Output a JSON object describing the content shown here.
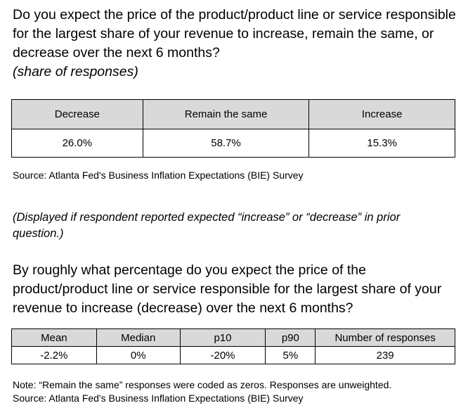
{
  "question1": {
    "text": "Do you expect the price of the product/product line or service responsible for the largest share of your revenue to increase, remain the same, or decrease over the next 6 months?",
    "subtitle": "(share of responses)"
  },
  "table1": {
    "headers": [
      "Decrease",
      "Remain the same",
      "Increase"
    ],
    "values": [
      "26.0%",
      "58.7%",
      "15.3%"
    ]
  },
  "source1": "Source: Atlanta Fed's Business Inflation Expectations (BIE) Survey",
  "display_note": "(Displayed if respondent reported expected “increase” or “decrease” in prior question.)",
  "question2": {
    "text": "By roughly what percentage do you expect the price of the product/product line or service responsible for the largest share of your revenue to increase (decrease) over the next 6 months?"
  },
  "table2": {
    "headers": [
      "Mean",
      "Median",
      "p10",
      "p90",
      "Number of responses"
    ],
    "values": [
      "-2.2%",
      "0%",
      "-20%",
      "5%",
      "239"
    ]
  },
  "note": "Note: “Remain the same” responses were coded as zeros. Responses are unweighted.",
  "source2": "Source: Atlanta Fed's Business Inflation Expectations (BIE) Survey"
}
